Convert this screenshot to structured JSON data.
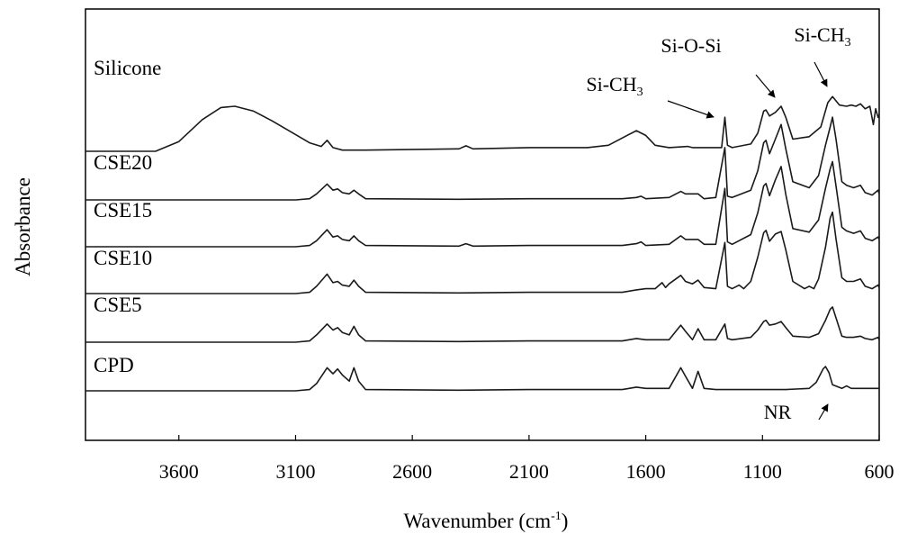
{
  "chart_data": {
    "type": "line",
    "title": "",
    "ylabel": "Absorbance",
    "xlabel_main": "Wavenumber (cm",
    "xlabel_sup": "-1",
    "xlabel_close": ")",
    "xlim": [
      4000,
      600
    ],
    "x_reversed": true,
    "xticks": [
      3600,
      3100,
      2600,
      2100,
      1600,
      1100,
      600
    ],
    "grid": false,
    "legend": "none",
    "line_color": "#1a1a1a",
    "series": [
      {
        "name": "Silicone",
        "points": [
          [
            4000,
            0
          ],
          [
            3700,
            0
          ],
          [
            3600,
            0.08
          ],
          [
            3500,
            0.26
          ],
          [
            3420,
            0.36
          ],
          [
            3360,
            0.37
          ],
          [
            3280,
            0.33
          ],
          [
            3200,
            0.25
          ],
          [
            3120,
            0.16
          ],
          [
            3040,
            0.07
          ],
          [
            2990,
            0.04
          ],
          [
            2965,
            0.09
          ],
          [
            2940,
            0.03
          ],
          [
            2900,
            0.01
          ],
          [
            2800,
            0.01
          ],
          [
            2400,
            0.02
          ],
          [
            2370,
            0.045
          ],
          [
            2340,
            0.02
          ],
          [
            2100,
            0.03
          ],
          [
            1850,
            0.03
          ],
          [
            1760,
            0.05
          ],
          [
            1680,
            0.13
          ],
          [
            1640,
            0.17
          ],
          [
            1600,
            0.13
          ],
          [
            1560,
            0.05
          ],
          [
            1500,
            0.03
          ],
          [
            1420,
            0.04
          ],
          [
            1400,
            0.03
          ],
          [
            1300,
            0.03
          ],
          [
            1275,
            0.03
          ],
          [
            1261,
            0.28
          ],
          [
            1250,
            0.05
          ],
          [
            1230,
            0.03
          ],
          [
            1150,
            0.06
          ],
          [
            1120,
            0.15
          ],
          [
            1095,
            0.33
          ],
          [
            1085,
            0.34
          ],
          [
            1070,
            0.29
          ],
          [
            1045,
            0.32
          ],
          [
            1020,
            0.37
          ],
          [
            1000,
            0.28
          ],
          [
            970,
            0.1
          ],
          [
            900,
            0.12
          ],
          [
            850,
            0.2
          ],
          [
            820,
            0.4
          ],
          [
            800,
            0.45
          ],
          [
            770,
            0.38
          ],
          [
            740,
            0.37
          ],
          [
            720,
            0.38
          ],
          [
            700,
            0.37
          ],
          [
            680,
            0.39
          ],
          [
            660,
            0.35
          ],
          [
            640,
            0.37
          ],
          [
            625,
            0.22
          ],
          [
            615,
            0.35
          ],
          [
            605,
            0.28
          ],
          [
            600,
            0.3
          ]
        ]
      },
      {
        "name": "CSE20",
        "points": [
          [
            4000,
            0
          ],
          [
            3100,
            0
          ],
          [
            3040,
            0.01
          ],
          [
            3010,
            0.05
          ],
          [
            2965,
            0.13
          ],
          [
            2940,
            0.08
          ],
          [
            2920,
            0.09
          ],
          [
            2900,
            0.06
          ],
          [
            2870,
            0.05
          ],
          [
            2850,
            0.08
          ],
          [
            2830,
            0.05
          ],
          [
            2800,
            0.01
          ],
          [
            2400,
            0.005
          ],
          [
            2100,
            0.01
          ],
          [
            1700,
            0.01
          ],
          [
            1640,
            0.02
          ],
          [
            1620,
            0.03
          ],
          [
            1600,
            0.01
          ],
          [
            1500,
            0.02
          ],
          [
            1450,
            0.07
          ],
          [
            1430,
            0.05
          ],
          [
            1376,
            0.05
          ],
          [
            1350,
            0.01
          ],
          [
            1300,
            0.02
          ],
          [
            1261,
            0.43
          ],
          [
            1250,
            0.03
          ],
          [
            1230,
            0.02
          ],
          [
            1150,
            0.08
          ],
          [
            1120,
            0.24
          ],
          [
            1095,
            0.47
          ],
          [
            1085,
            0.49
          ],
          [
            1070,
            0.38
          ],
          [
            1045,
            0.5
          ],
          [
            1020,
            0.62
          ],
          [
            1000,
            0.42
          ],
          [
            970,
            0.15
          ],
          [
            900,
            0.1
          ],
          [
            860,
            0.2
          ],
          [
            830,
            0.45
          ],
          [
            810,
            0.6
          ],
          [
            800,
            0.68
          ],
          [
            785,
            0.5
          ],
          [
            760,
            0.15
          ],
          [
            740,
            0.12
          ],
          [
            710,
            0.1
          ],
          [
            680,
            0.12
          ],
          [
            660,
            0.06
          ],
          [
            630,
            0.04
          ],
          [
            605,
            0.08
          ],
          [
            600,
            0.05
          ]
        ]
      },
      {
        "name": "CSE15",
        "points": [
          [
            4000,
            0
          ],
          [
            3100,
            0
          ],
          [
            3040,
            0.01
          ],
          [
            3010,
            0.05
          ],
          [
            2965,
            0.14
          ],
          [
            2940,
            0.08
          ],
          [
            2920,
            0.09
          ],
          [
            2900,
            0.06
          ],
          [
            2870,
            0.05
          ],
          [
            2850,
            0.09
          ],
          [
            2830,
            0.05
          ],
          [
            2800,
            0.01
          ],
          [
            2400,
            0.005
          ],
          [
            2370,
            0.025
          ],
          [
            2340,
            0.005
          ],
          [
            2100,
            0.01
          ],
          [
            1700,
            0.01
          ],
          [
            1640,
            0.025
          ],
          [
            1620,
            0.04
          ],
          [
            1600,
            0.01
          ],
          [
            1500,
            0.02
          ],
          [
            1450,
            0.09
          ],
          [
            1430,
            0.06
          ],
          [
            1376,
            0.06
          ],
          [
            1350,
            0.02
          ],
          [
            1300,
            0.02
          ],
          [
            1261,
            0.48
          ],
          [
            1250,
            0.04
          ],
          [
            1230,
            0.02
          ],
          [
            1150,
            0.1
          ],
          [
            1120,
            0.28
          ],
          [
            1095,
            0.5
          ],
          [
            1085,
            0.52
          ],
          [
            1070,
            0.42
          ],
          [
            1045,
            0.55
          ],
          [
            1020,
            0.66
          ],
          [
            1000,
            0.43
          ],
          [
            970,
            0.15
          ],
          [
            900,
            0.12
          ],
          [
            860,
            0.22
          ],
          [
            830,
            0.48
          ],
          [
            810,
            0.64
          ],
          [
            800,
            0.7
          ],
          [
            785,
            0.5
          ],
          [
            760,
            0.16
          ],
          [
            740,
            0.13
          ],
          [
            710,
            0.11
          ],
          [
            680,
            0.13
          ],
          [
            660,
            0.07
          ],
          [
            630,
            0.05
          ],
          [
            605,
            0.08
          ],
          [
            600,
            0.06
          ]
        ]
      },
      {
        "name": "CSE10",
        "points": [
          [
            4000,
            0
          ],
          [
            3100,
            0
          ],
          [
            3040,
            0.01
          ],
          [
            3010,
            0.06
          ],
          [
            2965,
            0.16
          ],
          [
            2940,
            0.09
          ],
          [
            2920,
            0.1
          ],
          [
            2900,
            0.07
          ],
          [
            2870,
            0.06
          ],
          [
            2850,
            0.11
          ],
          [
            2830,
            0.06
          ],
          [
            2800,
            0.01
          ],
          [
            2400,
            0.005
          ],
          [
            2100,
            0.01
          ],
          [
            1700,
            0.01
          ],
          [
            1640,
            0.03
          ],
          [
            1600,
            0.04
          ],
          [
            1560,
            0.04
          ],
          [
            1530,
            0.09
          ],
          [
            1515,
            0.05
          ],
          [
            1500,
            0.08
          ],
          [
            1450,
            0.15
          ],
          [
            1430,
            0.1
          ],
          [
            1400,
            0.08
          ],
          [
            1376,
            0.11
          ],
          [
            1350,
            0.05
          ],
          [
            1300,
            0.04
          ],
          [
            1261,
            0.42
          ],
          [
            1250,
            0.06
          ],
          [
            1230,
            0.04
          ],
          [
            1200,
            0.07
          ],
          [
            1180,
            0.04
          ],
          [
            1150,
            0.1
          ],
          [
            1120,
            0.3
          ],
          [
            1095,
            0.5
          ],
          [
            1085,
            0.52
          ],
          [
            1070,
            0.43
          ],
          [
            1045,
            0.49
          ],
          [
            1020,
            0.51
          ],
          [
            1000,
            0.36
          ],
          [
            970,
            0.1
          ],
          [
            920,
            0.04
          ],
          [
            900,
            0.06
          ],
          [
            880,
            0.04
          ],
          [
            860,
            0.12
          ],
          [
            830,
            0.38
          ],
          [
            810,
            0.62
          ],
          [
            800,
            0.67
          ],
          [
            785,
            0.45
          ],
          [
            760,
            0.13
          ],
          [
            740,
            0.1
          ],
          [
            710,
            0.1
          ],
          [
            680,
            0.12
          ],
          [
            660,
            0.06
          ],
          [
            630,
            0.04
          ],
          [
            605,
            0.07
          ],
          [
            600,
            0.05
          ]
        ]
      },
      {
        "name": "CSE5",
        "points": [
          [
            4000,
            0
          ],
          [
            3100,
            0
          ],
          [
            3040,
            0.01
          ],
          [
            3010,
            0.06
          ],
          [
            2965,
            0.15
          ],
          [
            2940,
            0.1
          ],
          [
            2920,
            0.12
          ],
          [
            2900,
            0.08
          ],
          [
            2870,
            0.06
          ],
          [
            2850,
            0.13
          ],
          [
            2830,
            0.06
          ],
          [
            2800,
            0.01
          ],
          [
            2400,
            0.005
          ],
          [
            2100,
            0.01
          ],
          [
            1700,
            0.01
          ],
          [
            1640,
            0.03
          ],
          [
            1600,
            0.02
          ],
          [
            1500,
            0.02
          ],
          [
            1450,
            0.14
          ],
          [
            1430,
            0.09
          ],
          [
            1400,
            0.02
          ],
          [
            1376,
            0.11
          ],
          [
            1350,
            0.02
          ],
          [
            1300,
            0.02
          ],
          [
            1261,
            0.15
          ],
          [
            1250,
            0.03
          ],
          [
            1230,
            0.02
          ],
          [
            1150,
            0.04
          ],
          [
            1120,
            0.1
          ],
          [
            1095,
            0.17
          ],
          [
            1085,
            0.18
          ],
          [
            1070,
            0.14
          ],
          [
            1045,
            0.15
          ],
          [
            1020,
            0.17
          ],
          [
            1000,
            0.12
          ],
          [
            970,
            0.05
          ],
          [
            900,
            0.04
          ],
          [
            860,
            0.07
          ],
          [
            830,
            0.18
          ],
          [
            810,
            0.27
          ],
          [
            800,
            0.29
          ],
          [
            785,
            0.2
          ],
          [
            760,
            0.05
          ],
          [
            740,
            0.04
          ],
          [
            710,
            0.04
          ],
          [
            680,
            0.05
          ],
          [
            660,
            0.03
          ],
          [
            630,
            0.02
          ],
          [
            605,
            0.04
          ],
          [
            600,
            0.02
          ]
        ]
      },
      {
        "name": "CPD",
        "points": [
          [
            4000,
            0
          ],
          [
            3100,
            0
          ],
          [
            3040,
            0.01
          ],
          [
            3010,
            0.06
          ],
          [
            2965,
            0.19
          ],
          [
            2940,
            0.14
          ],
          [
            2920,
            0.18
          ],
          [
            2900,
            0.13
          ],
          [
            2870,
            0.08
          ],
          [
            2850,
            0.19
          ],
          [
            2830,
            0.08
          ],
          [
            2800,
            0.01
          ],
          [
            2400,
            0.005
          ],
          [
            2100,
            0.01
          ],
          [
            1700,
            0.01
          ],
          [
            1640,
            0.03
          ],
          [
            1600,
            0.02
          ],
          [
            1500,
            0.02
          ],
          [
            1450,
            0.19
          ],
          [
            1430,
            0.12
          ],
          [
            1400,
            0.02
          ],
          [
            1376,
            0.16
          ],
          [
            1350,
            0.02
          ],
          [
            1300,
            0.01
          ],
          [
            1100,
            0.01
          ],
          [
            1000,
            0.01
          ],
          [
            900,
            0.02
          ],
          [
            870,
            0.07
          ],
          [
            840,
            0.18
          ],
          [
            830,
            0.2
          ],
          [
            815,
            0.15
          ],
          [
            800,
            0.05
          ],
          [
            760,
            0.02
          ],
          [
            740,
            0.04
          ],
          [
            720,
            0.02
          ],
          [
            700,
            0.02
          ],
          [
            600,
            0.02
          ]
        ]
      }
    ],
    "annotations": [
      {
        "label": "Si-CH",
        "sub": "3",
        "text_x": 1880,
        "text_y": 0.97,
        "tip_x": 1285,
        "tip_y": 0.56
      },
      {
        "label": "Si-O-Si",
        "sub": "",
        "text_x": 1265,
        "text_y": 1.05,
        "tip_x": 1020,
        "tip_y": 0.72
      },
      {
        "label": "Si-CH",
        "sub": "3",
        "text_x": 870,
        "text_y": 1.06,
        "tip_x": 815,
        "tip_y": 0.91
      },
      {
        "label": "NR",
        "sub": "",
        "text_x": 1000,
        "text_y": -0.05,
        "tip_x": 830,
        "tip_y": -0.045
      }
    ]
  }
}
